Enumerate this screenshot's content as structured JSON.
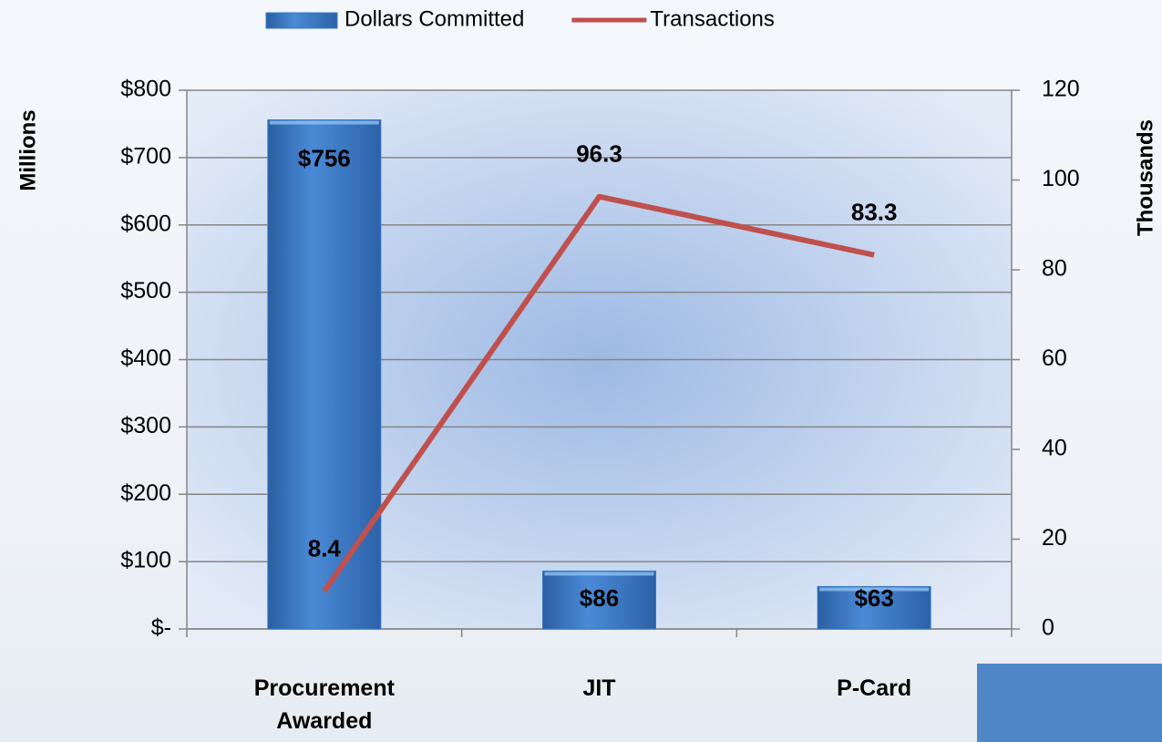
{
  "chart_data": {
    "type": "bar",
    "categories": [
      "Procurement Awarded",
      "JIT",
      "P-Card"
    ],
    "series": [
      {
        "name": "Dollars Committed",
        "type": "bar",
        "color": "#3a78c2",
        "values": [
          756,
          86,
          63
        ],
        "value_labels": [
          "$756",
          "$86",
          "$63"
        ]
      },
      {
        "name": "Transactions",
        "type": "line",
        "axis": "y2",
        "color": "#c0504d",
        "values": [
          8.4,
          96.3,
          83.3
        ]
      }
    ],
    "ylabel": "Millions",
    "y2label": "Thousands",
    "ylim": [
      0,
      800
    ],
    "yticks": [
      {
        "value": 0,
        "label": "$-"
      },
      {
        "value": 100,
        "label": "$100"
      },
      {
        "value": 200,
        "label": "$200"
      },
      {
        "value": 300,
        "label": "$300"
      },
      {
        "value": 400,
        "label": "$400"
      },
      {
        "value": 500,
        "label": "$500"
      },
      {
        "value": 600,
        "label": "$600"
      },
      {
        "value": 700,
        "label": "$700"
      },
      {
        "value": 800,
        "label": "$800"
      }
    ],
    "y2lim": [
      0,
      120
    ],
    "y2ticks": [
      0,
      20,
      40,
      60,
      80,
      100,
      120
    ],
    "grid": true,
    "legend": "top"
  }
}
